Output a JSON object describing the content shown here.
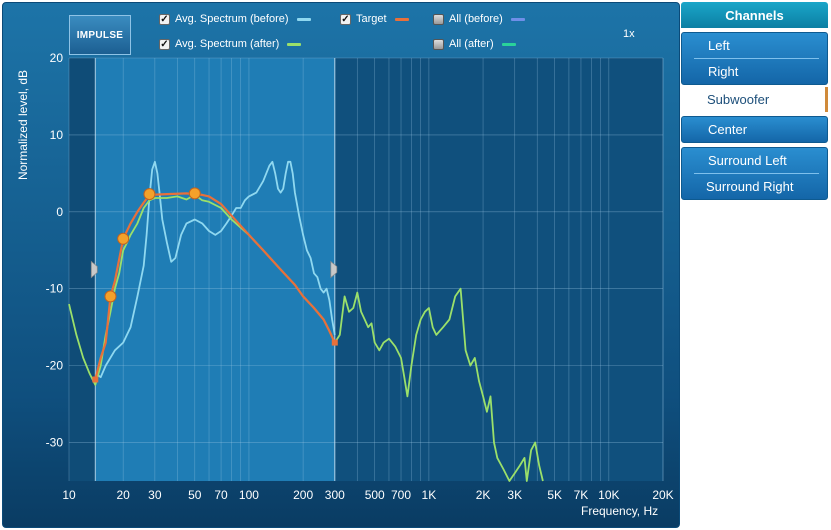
{
  "toolbar": {
    "impulse_label": "IMPULSE",
    "zoom_label": "1x",
    "legend": [
      {
        "label": "Avg. Spectrum (before)",
        "checked": true,
        "color": "#8fd8f0"
      },
      {
        "label": "Target",
        "checked": true,
        "color": "#e8703a"
      },
      {
        "label": "All (before)",
        "checked": false,
        "color": "#6f8fe8"
      },
      {
        "label": "Avg. Spectrum (after)",
        "checked": true,
        "color": "#9be06a"
      },
      {
        "label": "All (after)",
        "checked": false,
        "color": "#2ad29a"
      }
    ]
  },
  "chart_data": {
    "type": "line",
    "ylabel": "Normalized level, dB",
    "xlabel": "Frequency, Hz",
    "xscale": "log",
    "xlim": [
      10,
      20000
    ],
    "ylim": [
      -35,
      20
    ],
    "x_ticks": [
      {
        "v": 10,
        "t": "10"
      },
      {
        "v": 20,
        "t": "20"
      },
      {
        "v": 30,
        "t": "30"
      },
      {
        "v": 50,
        "t": "50"
      },
      {
        "v": 70,
        "t": "70"
      },
      {
        "v": 100,
        "t": "100"
      },
      {
        "v": 200,
        "t": "200"
      },
      {
        "v": 300,
        "t": "300"
      },
      {
        "v": 500,
        "t": "500"
      },
      {
        "v": 700,
        "t": "700"
      },
      {
        "v": 1000,
        "t": "1K"
      },
      {
        "v": 2000,
        "t": "2K"
      },
      {
        "v": 3000,
        "t": "3K"
      },
      {
        "v": 5000,
        "t": "5K"
      },
      {
        "v": 7000,
        "t": "7K"
      },
      {
        "v": 10000,
        "t": "10K"
      },
      {
        "v": 20000,
        "t": "20K"
      }
    ],
    "y_ticks": [
      20,
      10,
      0,
      -10,
      -20,
      -30
    ],
    "active_range_hz": [
      14,
      300
    ],
    "series": [
      {
        "name": "Avg. Spectrum (before)",
        "color": "#8fd8f0",
        "points": [
          [
            14,
            -21
          ],
          [
            15,
            -21.5
          ],
          [
            16,
            -20
          ],
          [
            18,
            -18
          ],
          [
            20,
            -17
          ],
          [
            22,
            -15
          ],
          [
            24,
            -11
          ],
          [
            26,
            -7
          ],
          [
            27,
            -3
          ],
          [
            28,
            2
          ],
          [
            29,
            5.5
          ],
          [
            30,
            6.5
          ],
          [
            31,
            5
          ],
          [
            32,
            2
          ],
          [
            33,
            -1
          ],
          [
            35,
            -4
          ],
          [
            37,
            -6.5
          ],
          [
            39,
            -6
          ],
          [
            42,
            -3
          ],
          [
            45,
            -1.5
          ],
          [
            50,
            -1
          ],
          [
            55,
            -1.5
          ],
          [
            60,
            -2.5
          ],
          [
            65,
            -3
          ],
          [
            70,
            -2.5
          ],
          [
            75,
            -1.5
          ],
          [
            80,
            -0.5
          ],
          [
            85,
            0.5
          ],
          [
            90,
            0.5
          ],
          [
            95,
            1.5
          ],
          [
            100,
            2
          ],
          [
            110,
            2.5
          ],
          [
            120,
            4
          ],
          [
            130,
            6
          ],
          [
            135,
            6.5
          ],
          [
            140,
            5
          ],
          [
            145,
            3
          ],
          [
            150,
            2.5
          ],
          [
            155,
            3
          ],
          [
            160,
            5
          ],
          [
            165,
            6.5
          ],
          [
            170,
            6.5
          ],
          [
            175,
            5
          ],
          [
            180,
            2.5
          ],
          [
            190,
            -0.5
          ],
          [
            200,
            -3
          ],
          [
            210,
            -5
          ],
          [
            220,
            -6
          ],
          [
            230,
            -8
          ],
          [
            240,
            -8.5
          ],
          [
            250,
            -10
          ],
          [
            260,
            -10.5
          ],
          [
            270,
            -10
          ],
          [
            280,
            -11.5
          ],
          [
            290,
            -14
          ],
          [
            300,
            -16
          ]
        ]
      },
      {
        "name": "Avg. Spectrum (after)",
        "color": "#9be06a",
        "points": [
          [
            10,
            -12
          ],
          [
            11,
            -16
          ],
          [
            12,
            -19
          ],
          [
            13,
            -21
          ],
          [
            14,
            -22.5
          ],
          [
            15,
            -20
          ],
          [
            16,
            -16
          ],
          [
            17,
            -13
          ],
          [
            18,
            -10
          ],
          [
            19,
            -8
          ],
          [
            20,
            -5
          ],
          [
            21,
            -4
          ],
          [
            22,
            -3
          ],
          [
            24,
            -1.5
          ],
          [
            26,
            0.5
          ],
          [
            28,
            1.5
          ],
          [
            30,
            1.8
          ],
          [
            35,
            1.8
          ],
          [
            40,
            2
          ],
          [
            45,
            1.6
          ],
          [
            50,
            2.2
          ],
          [
            55,
            1.5
          ],
          [
            60,
            1.3
          ],
          [
            70,
            0.5
          ],
          [
            80,
            -1
          ],
          [
            100,
            -3
          ],
          [
            120,
            -5
          ],
          [
            150,
            -7.5
          ],
          [
            180,
            -9.5
          ],
          [
            200,
            -11
          ],
          [
            230,
            -12.5
          ],
          [
            260,
            -14
          ],
          [
            280,
            -15.5
          ],
          [
            300,
            -17
          ],
          [
            320,
            -16
          ],
          [
            340,
            -11
          ],
          [
            360,
            -13
          ],
          [
            380,
            -12.5
          ],
          [
            400,
            -10.5
          ],
          [
            420,
            -13
          ],
          [
            440,
            -14
          ],
          [
            460,
            -15
          ],
          [
            480,
            -14.5
          ],
          [
            500,
            -17
          ],
          [
            530,
            -18
          ],
          [
            560,
            -17
          ],
          [
            600,
            -16.5
          ],
          [
            650,
            -17.5
          ],
          [
            700,
            -19
          ],
          [
            730,
            -21.5
          ],
          [
            760,
            -24
          ],
          [
            800,
            -20
          ],
          [
            850,
            -16
          ],
          [
            900,
            -14
          ],
          [
            950,
            -13
          ],
          [
            1000,
            -12.5
          ],
          [
            1050,
            -15
          ],
          [
            1100,
            -16
          ],
          [
            1200,
            -15
          ],
          [
            1300,
            -14
          ],
          [
            1400,
            -11
          ],
          [
            1500,
            -10
          ],
          [
            1550,
            -14
          ],
          [
            1600,
            -18
          ],
          [
            1700,
            -20
          ],
          [
            1800,
            -19
          ],
          [
            1900,
            -22
          ],
          [
            2000,
            -24
          ],
          [
            2100,
            -26
          ],
          [
            2200,
            -24
          ],
          [
            2300,
            -30
          ],
          [
            2400,
            -32
          ],
          [
            2600,
            -33.5
          ],
          [
            2800,
            -35
          ],
          [
            3000,
            -34
          ],
          [
            3200,
            -33
          ],
          [
            3400,
            -32
          ],
          [
            3500,
            -35
          ],
          [
            3700,
            -31
          ],
          [
            3900,
            -30
          ],
          [
            4100,
            -33
          ],
          [
            4300,
            -35
          ]
        ]
      },
      {
        "name": "Target",
        "color": "#e8703a",
        "points": [
          [
            14,
            -21.8
          ],
          [
            15,
            -19
          ],
          [
            16,
            -17
          ],
          [
            17,
            -11
          ],
          [
            18,
            -9
          ],
          [
            20,
            -3.5
          ],
          [
            22,
            -1.5
          ],
          [
            24,
            0
          ],
          [
            26,
            1.2
          ],
          [
            28,
            2.2
          ],
          [
            35,
            2.3
          ],
          [
            45,
            2.4
          ],
          [
            50,
            2.3
          ],
          [
            55,
            2.2
          ],
          [
            60,
            2
          ],
          [
            70,
            1
          ],
          [
            80,
            -0.5
          ],
          [
            100,
            -3
          ],
          [
            120,
            -5
          ],
          [
            150,
            -7.5
          ],
          [
            180,
            -9.5
          ],
          [
            200,
            -11
          ],
          [
            230,
            -12.5
          ],
          [
            260,
            -14
          ],
          [
            280,
            -15.5
          ],
          [
            300,
            -17
          ]
        ]
      }
    ],
    "control_points": [
      [
        14,
        -21.8
      ],
      [
        17,
        -11
      ],
      [
        20,
        -3.5
      ],
      [
        28,
        2.3
      ],
      [
        50,
        2.4
      ],
      [
        300,
        -17
      ]
    ]
  },
  "channels": {
    "title": "Channels",
    "groups": [
      {
        "items": [
          "Left",
          "Right"
        ]
      },
      {
        "plain": true,
        "items": [
          "Subwoofer"
        ]
      },
      {
        "items": [
          "Center"
        ]
      },
      {
        "items": [
          "Surround Left",
          "Surround Right"
        ]
      }
    ]
  }
}
